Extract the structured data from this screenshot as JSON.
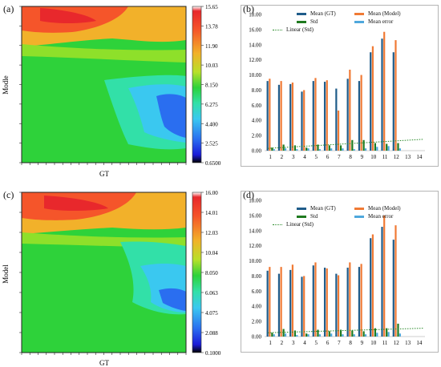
{
  "labels": {
    "a": "(a)",
    "b": "(b)",
    "c": "(c)",
    "d": "(d)",
    "a_ylabel": "Modle",
    "c_ylabel": "Model",
    "a_xlabel": "GT",
    "c_xlabel": "GT"
  },
  "colorbars": [
    {
      "ticks": [
        "15.65",
        "13.78",
        "11.90",
        "10.03",
        "8.150",
        "6.275",
        "4.400",
        "2.525",
        "0.6500"
      ]
    },
    {
      "ticks": [
        "16.00",
        "14.01",
        "12.03",
        "10.04",
        "8.050",
        "6.063",
        "4.075",
        "2.088",
        "0.1000"
      ]
    }
  ],
  "colors": {
    "mean_gt": "#1f5c8a",
    "mean_model": "#f07a35",
    "std": "#1f7a1f",
    "mean_error": "#4fa8dc",
    "linear": "#2a8a2a"
  },
  "chart_data": [
    {
      "type": "heatmap",
      "panel": "a",
      "xlabel": "GT",
      "ylabel": "Modle",
      "zlim": [
        0.65,
        15.65
      ]
    },
    {
      "type": "bar",
      "panel": "b",
      "ylim": [
        0,
        18
      ],
      "yticks": [
        "18.00",
        "16.00",
        "14.00",
        "12.00",
        "10.00",
        "8.00",
        "6.00",
        "4.00",
        "2.00",
        "0.00"
      ],
      "categories": [
        "1",
        "2",
        "3",
        "4",
        "5",
        "6",
        "7",
        "8",
        "9",
        "10",
        "11",
        "12",
        "13",
        "14"
      ],
      "legend": [
        "Mean (GT)",
        "Mean (Model)",
        "Std",
        "Mean error",
        "Linear (Std)"
      ],
      "series": [
        {
          "name": "Mean (GT)",
          "values": [
            9.2,
            8.7,
            8.8,
            7.8,
            9.2,
            9.1,
            8.2,
            9.5,
            9.2,
            13.0,
            14.8,
            13.0,
            0,
            0
          ]
        },
        {
          "name": "Mean (Model)",
          "values": [
            9.5,
            9.2,
            9.0,
            8.0,
            9.6,
            9.3,
            5.3,
            10.7,
            10.0,
            13.8,
            15.7,
            14.6,
            0,
            0
          ]
        },
        {
          "name": "Std",
          "values": [
            0.4,
            0.8,
            0.7,
            0.4,
            0.8,
            0.7,
            0.7,
            1.4,
            1.4,
            1.0,
            0.9,
            1.0,
            0,
            0
          ]
        },
        {
          "name": "Mean error",
          "values": [
            0.2,
            0.3,
            0.2,
            0.3,
            0.2,
            0.3,
            0.3,
            0.2,
            0.3,
            0.5,
            0.6,
            0.3,
            0,
            0
          ]
        }
      ],
      "trend": {
        "name": "Linear (Std)",
        "start": 0.3,
        "end": 1.5
      }
    },
    {
      "type": "heatmap",
      "panel": "c",
      "xlabel": "GT",
      "ylabel": "Model",
      "zlim": [
        0.1,
        16.0
      ]
    },
    {
      "type": "bar",
      "panel": "d",
      "ylim": [
        0,
        18
      ],
      "yticks": [
        "18.00",
        "16.00",
        "14.00",
        "12.00",
        "10.00",
        "8.00",
        "6.00",
        "4.00",
        "2.00",
        "0.00"
      ],
      "categories": [
        "1",
        "2",
        "3",
        "4",
        "5",
        "6",
        "7",
        "8",
        "9",
        "10",
        "11",
        "12",
        "13",
        "14"
      ],
      "legend": [
        "Mean (GT)",
        "Mean (Model)",
        "Std",
        "Mean error",
        "Linear (Std)"
      ],
      "series": [
        {
          "name": "Mean (GT)",
          "values": [
            8.7,
            8.3,
            8.8,
            7.9,
            9.4,
            9.1,
            8.3,
            9.1,
            9.2,
            13.0,
            14.5,
            12.8,
            0,
            0
          ]
        },
        {
          "name": "Mean (Model)",
          "values": [
            9.2,
            9.2,
            9.5,
            8.0,
            9.8,
            9.0,
            8.1,
            9.8,
            9.6,
            13.5,
            16.0,
            14.7,
            0,
            0
          ]
        },
        {
          "name": "Std",
          "values": [
            0.5,
            1.0,
            0.8,
            0.4,
            0.9,
            0.7,
            0.9,
            0.8,
            0.7,
            1.1,
            1.1,
            1.7,
            0,
            0
          ]
        },
        {
          "name": "Mean error",
          "values": [
            0.3,
            0.4,
            0.2,
            0.3,
            0.3,
            0.4,
            0.3,
            0.3,
            0.3,
            0.5,
            0.6,
            0.4,
            0,
            0
          ]
        }
      ],
      "trend": {
        "name": "Linear (Std)",
        "start": 0.5,
        "end": 1.1
      }
    }
  ]
}
